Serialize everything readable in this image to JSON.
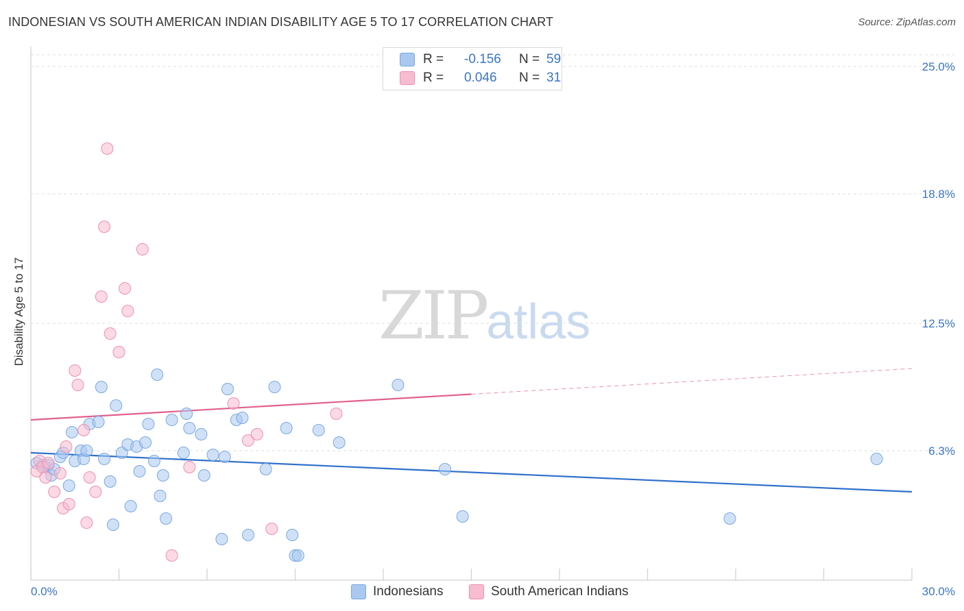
{
  "header": {
    "title": "INDONESIAN VS SOUTH AMERICAN INDIAN DISABILITY AGE 5 TO 17 CORRELATION CHART",
    "source": "Source: ZipAtlas.com"
  },
  "watermark": {
    "zip": "ZIP",
    "atlas": "atlas"
  },
  "legend": {
    "rows": [
      {
        "r_label": "R =",
        "r_value": "-0.156",
        "n_label": "N =",
        "n_value": "59",
        "color": "#aac8f0"
      },
      {
        "r_label": "R =",
        "r_value": "0.046",
        "n_label": "N =",
        "n_value": "31",
        "color": "#f7bcd0"
      }
    ]
  },
  "chart_data": {
    "type": "scatter",
    "title": "INDONESIAN VS SOUTH AMERICAN INDIAN DISABILITY AGE 5 TO 17 CORRELATION CHART",
    "xlabel": "",
    "ylabel": "Disability Age 5 to 17",
    "xlim": [
      0,
      30
    ],
    "ylim": [
      0,
      25.0
    ],
    "x_tick_labels": [
      "0.0%",
      "30.0%"
    ],
    "y_tick_labels": [
      "6.3%",
      "12.5%",
      "18.8%",
      "25.0%"
    ],
    "y_ticks": [
      6.3,
      12.5,
      18.8,
      25.0
    ],
    "grid": true,
    "legend_position": "top-center",
    "series": [
      {
        "name": "Indonesians",
        "color": "#7aa8e0",
        "fill": "#aac8f0",
        "trend_color": "#2f6fcc",
        "trend": {
          "x0": 0,
          "y0": 6.2,
          "x1": 30,
          "y1": 4.3,
          "solid_until": 30
        },
        "points": [
          [
            0.2,
            5.7
          ],
          [
            0.4,
            5.6
          ],
          [
            0.5,
            5.5
          ],
          [
            0.6,
            5.6
          ],
          [
            0.7,
            5.1
          ],
          [
            0.8,
            5.4
          ],
          [
            1.0,
            6.0
          ],
          [
            1.1,
            6.2
          ],
          [
            1.3,
            4.6
          ],
          [
            1.4,
            7.2
          ],
          [
            1.5,
            5.8
          ],
          [
            1.7,
            6.3
          ],
          [
            1.8,
            5.9
          ],
          [
            1.9,
            6.3
          ],
          [
            2.0,
            7.6
          ],
          [
            2.3,
            7.7
          ],
          [
            2.4,
            9.4
          ],
          [
            2.5,
            5.9
          ],
          [
            2.7,
            4.8
          ],
          [
            2.8,
            2.7
          ],
          [
            2.9,
            8.5
          ],
          [
            3.1,
            6.2
          ],
          [
            3.3,
            6.6
          ],
          [
            3.4,
            3.6
          ],
          [
            3.6,
            6.5
          ],
          [
            3.7,
            5.3
          ],
          [
            3.9,
            6.7
          ],
          [
            4.0,
            7.6
          ],
          [
            4.2,
            5.8
          ],
          [
            4.3,
            10.0
          ],
          [
            4.4,
            4.1
          ],
          [
            4.5,
            5.1
          ],
          [
            4.6,
            3.0
          ],
          [
            4.8,
            7.8
          ],
          [
            5.2,
            6.2
          ],
          [
            5.3,
            8.1
          ],
          [
            5.4,
            7.4
          ],
          [
            5.8,
            7.1
          ],
          [
            5.9,
            5.1
          ],
          [
            6.2,
            6.1
          ],
          [
            6.5,
            2.0
          ],
          [
            6.6,
            6.0
          ],
          [
            6.7,
            9.3
          ],
          [
            7.0,
            7.8
          ],
          [
            7.2,
            7.9
          ],
          [
            7.4,
            2.2
          ],
          [
            8.0,
            5.4
          ],
          [
            8.3,
            9.4
          ],
          [
            8.7,
            7.4
          ],
          [
            8.9,
            2.2
          ],
          [
            9.0,
            1.2
          ],
          [
            9.1,
            1.2
          ],
          [
            9.8,
            7.3
          ],
          [
            10.5,
            6.7
          ],
          [
            12.5,
            9.5
          ],
          [
            14.1,
            5.4
          ],
          [
            14.7,
            3.1
          ],
          [
            23.8,
            3.0
          ],
          [
            28.8,
            5.9
          ]
        ]
      },
      {
        "name": "South American Indians",
        "color": "#ee8fb0",
        "fill": "#f7bcd0",
        "trend_color": "#e0608e",
        "trend": {
          "x0": 0,
          "y0": 7.8,
          "x1": 30,
          "y1": 10.3,
          "solid_until": 15
        },
        "points": [
          [
            0.2,
            5.3
          ],
          [
            0.3,
            5.8
          ],
          [
            0.4,
            5.5
          ],
          [
            0.5,
            5.0
          ],
          [
            0.6,
            5.7
          ],
          [
            0.8,
            4.3
          ],
          [
            1.0,
            5.2
          ],
          [
            1.1,
            3.5
          ],
          [
            1.2,
            6.5
          ],
          [
            1.3,
            3.7
          ],
          [
            1.5,
            10.2
          ],
          [
            1.6,
            9.5
          ],
          [
            1.8,
            7.3
          ],
          [
            1.9,
            2.8
          ],
          [
            2.0,
            5.0
          ],
          [
            2.2,
            4.3
          ],
          [
            2.4,
            13.8
          ],
          [
            2.5,
            17.2
          ],
          [
            2.6,
            21.0
          ],
          [
            2.7,
            12.0
          ],
          [
            3.0,
            11.1
          ],
          [
            3.2,
            14.2
          ],
          [
            3.3,
            13.1
          ],
          [
            3.8,
            16.1
          ],
          [
            4.8,
            1.2
          ],
          [
            5.4,
            5.5
          ],
          [
            6.9,
            8.6
          ],
          [
            7.4,
            6.8
          ],
          [
            7.7,
            7.1
          ],
          [
            8.2,
            2.5
          ],
          [
            10.4,
            8.1
          ]
        ]
      }
    ]
  }
}
